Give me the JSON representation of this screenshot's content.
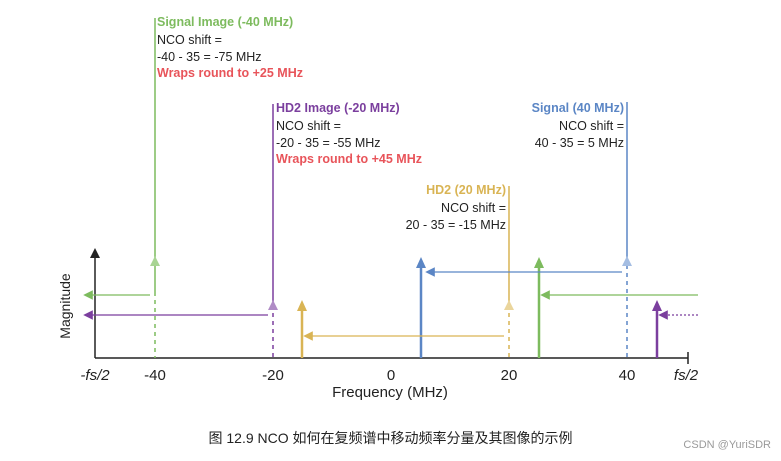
{
  "colors": {
    "signal": "#5b86c5",
    "signal_image": "#7dbb5e",
    "hd2": "#d9b454",
    "hd2_image": "#7b3f9e",
    "note": "#e8545a",
    "axis": "#222222"
  },
  "axes": {
    "ylabel": "Magnitude",
    "xlabel": "Frequency (MHz)",
    "ticks": [
      "-fs/2",
      "-40",
      "-20",
      "0",
      "20",
      "40",
      "fs/2"
    ]
  },
  "callouts": {
    "signal_image": {
      "title": "Signal Image (-40 MHz)",
      "line1": "NCO shift =",
      "line2": "-40 - 35 = -75 MHz",
      "line3": "Wraps round to +25 MHz"
    },
    "hd2_image": {
      "title": "HD2 Image (-20 MHz)",
      "line1": "NCO shift =",
      "line2": "-20 - 35 = -55 MHz",
      "line3": "Wraps round to +45 MHz"
    },
    "signal": {
      "title": "Signal (40 MHz)",
      "line1": "NCO shift =",
      "line2": "40 - 35 = 5 MHz"
    },
    "hd2": {
      "title": "HD2 (20 MHz)",
      "line1": "NCO shift =",
      "line2": "20 - 35 = -15 MHz"
    }
  },
  "caption": "图 12.9 NCO 如何在复频谱中移动频率分量及其图像的示例",
  "watermark": "CSDN @YuriSDR"
}
